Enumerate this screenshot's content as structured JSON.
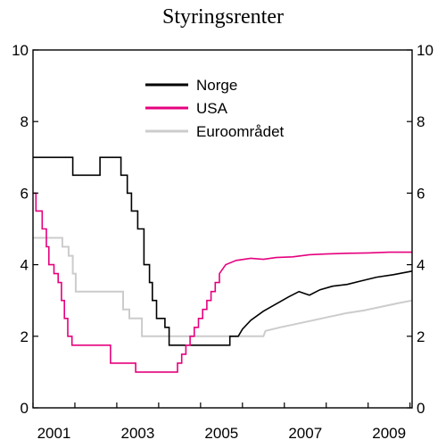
{
  "chart_data": {
    "type": "line",
    "title": "Styringsrenter",
    "xlabel": "",
    "ylabel": "",
    "xlim": [
      2000.0,
      2009.05
    ],
    "ylim": [
      0,
      10
    ],
    "y_ticks": [
      0,
      2,
      4,
      6,
      8,
      10
    ],
    "x_ticks": [
      "2001",
      "2003",
      "2005",
      "2007",
      "2009"
    ],
    "x_tick_positions": [
      2000.5,
      2002.5,
      2004.5,
      2006.5,
      2008.5
    ],
    "legend_position": "top-center",
    "y_axis": "left and right",
    "grid": false,
    "series": [
      {
        "name": "Norge",
        "color": "#000000",
        "values": [
          [
            2000.0,
            7.0
          ],
          [
            2000.95,
            7.0
          ],
          [
            2000.95,
            6.5
          ],
          [
            2001.6,
            6.5
          ],
          [
            2001.6,
            7.0
          ],
          [
            2002.1,
            7.0
          ],
          [
            2002.1,
            6.5
          ],
          [
            2002.25,
            6.5
          ],
          [
            2002.25,
            6.0
          ],
          [
            2002.35,
            6.0
          ],
          [
            2002.35,
            5.5
          ],
          [
            2002.5,
            5.5
          ],
          [
            2002.5,
            5.0
          ],
          [
            2002.65,
            5.0
          ],
          [
            2002.65,
            4.0
          ],
          [
            2002.78,
            4.0
          ],
          [
            2002.78,
            3.5
          ],
          [
            2002.85,
            3.5
          ],
          [
            2002.85,
            3.0
          ],
          [
            2002.95,
            3.0
          ],
          [
            2002.95,
            2.5
          ],
          [
            2003.15,
            2.5
          ],
          [
            2003.15,
            2.25
          ],
          [
            2003.25,
            2.25
          ],
          [
            2003.25,
            1.75
          ],
          [
            2004.7,
            1.75
          ],
          [
            2004.7,
            2.0
          ],
          [
            2004.9,
            2.0
          ],
          [
            2005.0,
            2.2
          ],
          [
            2005.2,
            2.45
          ],
          [
            2005.5,
            2.7
          ],
          [
            2005.8,
            2.9
          ],
          [
            2006.1,
            3.1
          ],
          [
            2006.35,
            3.25
          ],
          [
            2006.6,
            3.15
          ],
          [
            2006.85,
            3.3
          ],
          [
            2007.15,
            3.4
          ],
          [
            2007.5,
            3.45
          ],
          [
            2007.85,
            3.55
          ],
          [
            2008.2,
            3.65
          ],
          [
            2008.6,
            3.72
          ],
          [
            2009.05,
            3.82
          ]
        ]
      },
      {
        "name": "USA",
        "color": "#e6007e",
        "values": [
          [
            2000.0,
            6.0
          ],
          [
            2000.07,
            6.0
          ],
          [
            2000.07,
            5.5
          ],
          [
            2000.22,
            5.5
          ],
          [
            2000.22,
            5.0
          ],
          [
            2000.32,
            5.0
          ],
          [
            2000.32,
            4.5
          ],
          [
            2000.38,
            4.5
          ],
          [
            2000.38,
            4.0
          ],
          [
            2000.5,
            4.0
          ],
          [
            2000.5,
            3.75
          ],
          [
            2000.6,
            3.75
          ],
          [
            2000.6,
            3.5
          ],
          [
            2000.68,
            3.5
          ],
          [
            2000.68,
            3.0
          ],
          [
            2000.75,
            3.0
          ],
          [
            2000.75,
            2.5
          ],
          [
            2000.83,
            2.5
          ],
          [
            2000.83,
            2.0
          ],
          [
            2000.93,
            2.0
          ],
          [
            2000.93,
            1.75
          ],
          [
            2001.85,
            1.75
          ],
          [
            2001.85,
            1.25
          ],
          [
            2002.45,
            1.25
          ],
          [
            2002.45,
            1.0
          ],
          [
            2003.45,
            1.0
          ],
          [
            2003.45,
            1.25
          ],
          [
            2003.55,
            1.25
          ],
          [
            2003.55,
            1.5
          ],
          [
            2003.65,
            1.5
          ],
          [
            2003.65,
            1.75
          ],
          [
            2003.75,
            1.75
          ],
          [
            2003.75,
            2.0
          ],
          [
            2003.85,
            2.0
          ],
          [
            2003.85,
            2.25
          ],
          [
            2003.95,
            2.25
          ],
          [
            2003.95,
            2.5
          ],
          [
            2004.05,
            2.5
          ],
          [
            2004.05,
            2.75
          ],
          [
            2004.15,
            2.75
          ],
          [
            2004.15,
            3.0
          ],
          [
            2004.25,
            3.0
          ],
          [
            2004.25,
            3.25
          ],
          [
            2004.35,
            3.25
          ],
          [
            2004.35,
            3.5
          ],
          [
            2004.45,
            3.5
          ],
          [
            2004.45,
            3.75
          ],
          [
            2004.6,
            4.0
          ],
          [
            2004.85,
            4.12
          ],
          [
            2005.2,
            4.18
          ],
          [
            2005.5,
            4.15
          ],
          [
            2005.8,
            4.2
          ],
          [
            2006.2,
            4.22
          ],
          [
            2006.6,
            4.28
          ],
          [
            2007.0,
            4.3
          ],
          [
            2007.5,
            4.32
          ],
          [
            2008.0,
            4.33
          ],
          [
            2008.5,
            4.35
          ],
          [
            2009.05,
            4.35
          ]
        ]
      },
      {
        "name": "Euroområdet",
        "color": "#cccccc",
        "values": [
          [
            2000.0,
            4.75
          ],
          [
            2000.7,
            4.75
          ],
          [
            2000.7,
            4.5
          ],
          [
            2000.85,
            4.5
          ],
          [
            2000.85,
            4.25
          ],
          [
            2000.95,
            4.25
          ],
          [
            2000.95,
            3.75
          ],
          [
            2001.02,
            3.75
          ],
          [
            2001.02,
            3.25
          ],
          [
            2002.15,
            3.25
          ],
          [
            2002.15,
            2.75
          ],
          [
            2002.3,
            2.75
          ],
          [
            2002.3,
            2.5
          ],
          [
            2002.6,
            2.5
          ],
          [
            2002.6,
            2.0
          ],
          [
            2005.1,
            2.0
          ],
          [
            2005.1,
            2.0
          ],
          [
            2005.5,
            2.0
          ],
          [
            2005.55,
            2.15
          ],
          [
            2005.9,
            2.25
          ],
          [
            2006.3,
            2.35
          ],
          [
            2006.7,
            2.45
          ],
          [
            2007.1,
            2.55
          ],
          [
            2007.5,
            2.65
          ],
          [
            2007.9,
            2.72
          ],
          [
            2008.3,
            2.82
          ],
          [
            2008.7,
            2.92
          ],
          [
            2009.05,
            3.0
          ]
        ]
      }
    ]
  }
}
